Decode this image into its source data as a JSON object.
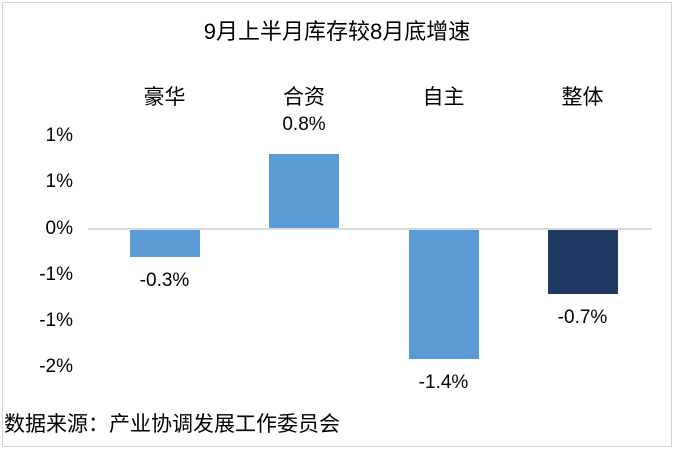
{
  "chart_data": {
    "type": "bar",
    "title": "9月上半月库存较8月底增速",
    "categories": [
      "豪华",
      "合资",
      "自主",
      "整体"
    ],
    "values": [
      -0.3,
      0.8,
      -1.4,
      -0.7
    ],
    "data_labels": [
      "-0.3%",
      "0.8%",
      "-1.4%",
      "-0.7%"
    ],
    "unit": "percent",
    "series": [
      {
        "name": "9月上半月库存较8月底增速",
        "values": [
          -0.3,
          0.8,
          -1.4,
          -0.7
        ]
      }
    ],
    "bar_colors": [
      "#5B9BD5",
      "#5B9BD5",
      "#5B9BD5",
      "#203A63"
    ],
    "y_axis": {
      "min": -1.5,
      "max": 1.0,
      "major_unit": 0.5,
      "tick_values": [
        1.0,
        0.5,
        0.0,
        -0.5,
        -1.0,
        -1.5
      ],
      "tick_labels": [
        "1%",
        "1%",
        "0%",
        "-1%",
        "-1%",
        "-2%"
      ]
    },
    "gridlines": false,
    "legend_position": "none",
    "category_label_position": "top",
    "axis_line_color": "#D9D9D9"
  },
  "source_note": "数据来源：产业协调发展工作委员会",
  "colors": {
    "bar_default": "#5B9BD5",
    "bar_emphasis": "#203A63",
    "axis_line": "#D9D9D9",
    "text": "#000000",
    "frame_border": "#D4D4D4",
    "background": "#FFFFFF"
  }
}
